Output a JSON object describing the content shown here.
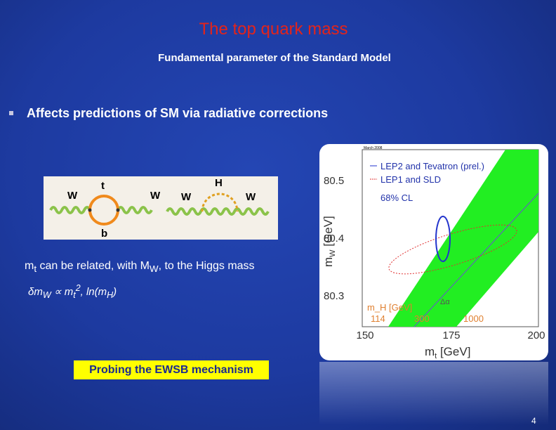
{
  "title": "The top quark mass",
  "subtitle": "Fundamental parameter of the Standard Model",
  "bullet": "Affects predictions of SM via radiative corrections",
  "diagram": {
    "left": {
      "w_in": "W",
      "w_out": "W",
      "top": "t",
      "bottom": "b"
    },
    "right": {
      "w_in": "W",
      "w_out": "W",
      "higgs": "H"
    }
  },
  "relation": [
    "m",
    "t",
    " can be related, with M",
    "W",
    ", to the Higgs mass"
  ],
  "formula": [
    "δm",
    "W",
    " ∝ m",
    "t",
    "2",
    ", ln(m",
    "H",
    ")"
  ],
  "callout": "Probing the EWSB mechanism",
  "figure": {
    "date": "March 2008",
    "legend": [
      "LEP2 and Tevatron (prel.)",
      "LEP1 and SLD"
    ],
    "cl": "68% CL",
    "y_label": [
      "m",
      "W",
      " [GeV]"
    ],
    "x_label": [
      "m",
      "t",
      " [GeV]"
    ],
    "yticks": [
      "80.5",
      "80.4",
      "80.3"
    ],
    "xticks": [
      "150",
      "175",
      "200"
    ],
    "mh_label": "m_H [GeV]",
    "mh_values": [
      "114",
      "300",
      "1000"
    ],
    "delta_alpha": "Δα"
  },
  "page_number": "4"
}
